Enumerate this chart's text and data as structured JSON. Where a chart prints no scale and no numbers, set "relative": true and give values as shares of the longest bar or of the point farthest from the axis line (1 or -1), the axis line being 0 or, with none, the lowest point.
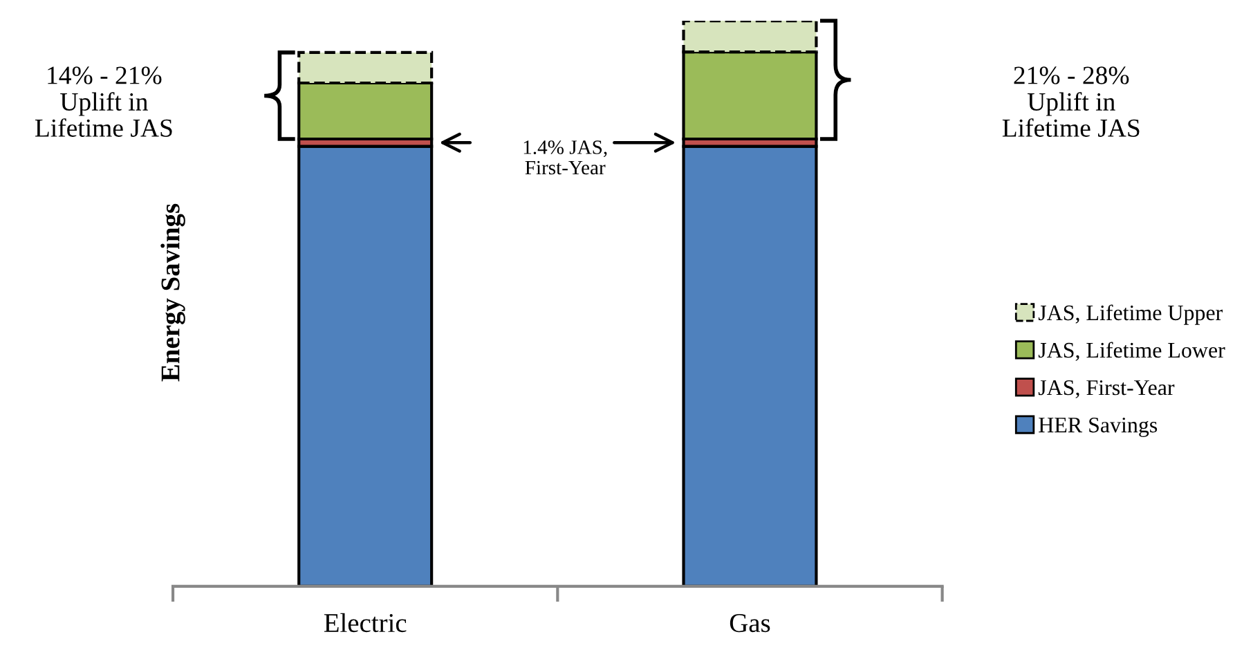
{
  "chart_data": {
    "type": "bar",
    "stacked": true,
    "relative": true,
    "ylabel": "Energy Savings",
    "categories": [
      "Electric",
      "Gas"
    ],
    "series": [
      {
        "name": "HER Savings",
        "color": "#4f81bd",
        "values": [
          0.778,
          0.778
        ]
      },
      {
        "name": "JAS, First-Year",
        "color": "#c0504d",
        "values": [
          0.013,
          0.013
        ]
      },
      {
        "name": "JAS, Lifetime Lower",
        "color": "#9bbb59",
        "values": [
          0.099,
          0.154
        ]
      },
      {
        "name": "JAS, Lifetime Upper",
        "color": "#d7e4bd",
        "values": [
          0.054,
          0.055
        ],
        "line_style": "dashed"
      }
    ],
    "annotations": [
      "14% - 21%\nUplift in\nLifetime JAS",
      "1.4% JAS,\nFirst-Year",
      "21% - 28%\nUplift in\nLifetime JAS"
    ],
    "legend": "right",
    "grid": false
  }
}
